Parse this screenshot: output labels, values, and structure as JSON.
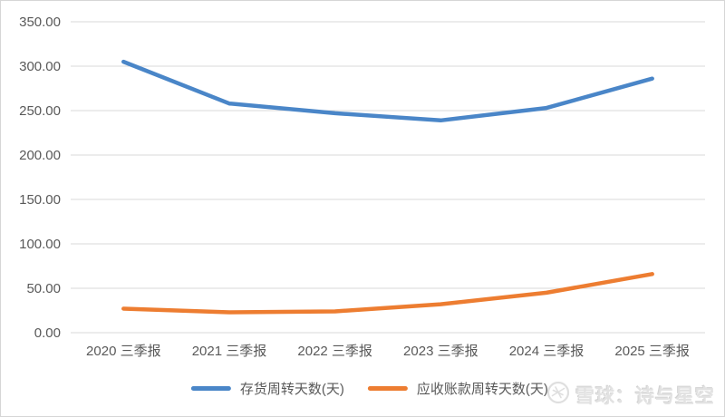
{
  "chart_data": {
    "type": "line",
    "title": "",
    "xlabel": "",
    "ylabel": "",
    "categories": [
      "2020 三季报",
      "2021 三季报",
      "2022 三季报",
      "2023 三季报",
      "2024 三季报",
      "2025 三季报"
    ],
    "series": [
      {
        "name": "存货周转天数(天)",
        "color": "#4A86C8",
        "values": [
          305,
          258,
          247,
          239,
          253,
          286
        ]
      },
      {
        "name": "应收账款周转天数(天)",
        "color": "#ED7D31",
        "values": [
          27,
          23,
          24,
          32,
          45,
          66
        ]
      }
    ],
    "ylim": [
      0,
      350
    ],
    "y_tick_step": 50,
    "y_ticks": [
      "0.00",
      "50.00",
      "100.00",
      "150.00",
      "200.00",
      "250.00",
      "300.00",
      "350.00"
    ],
    "grid": true,
    "legend_position": "bottom"
  },
  "colors": {
    "gridline": "#d9d9d9",
    "axis_label": "#595959",
    "background": "#ffffff",
    "border": "#d6d6d6",
    "watermark": "#e2e2e2"
  },
  "watermark": {
    "logo": "xueqiu-snowball-icon",
    "text": "雪球：诗与星空"
  }
}
